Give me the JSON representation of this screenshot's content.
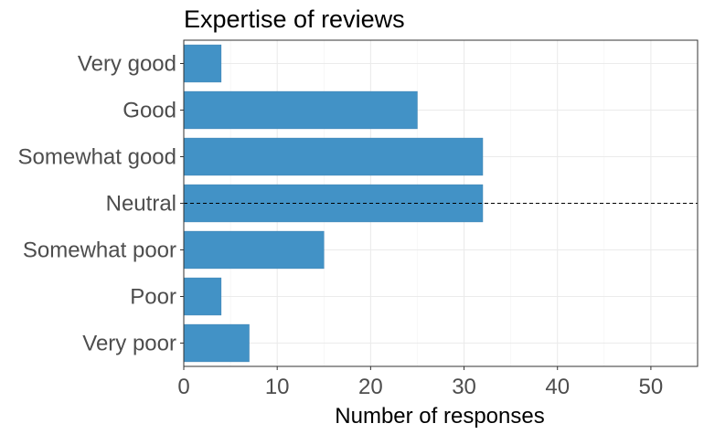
{
  "chart_data": {
    "type": "bar",
    "orientation": "horizontal",
    "title": "Expertise of reviews",
    "xlabel": "Number of responses",
    "ylabel": "",
    "categories": [
      "Very good",
      "Good",
      "Somewhat good",
      "Neutral",
      "Somewhat poor",
      "Poor",
      "Very poor"
    ],
    "values": [
      4,
      25,
      32,
      32,
      15,
      4,
      7
    ],
    "xlim": [
      0,
      55
    ],
    "xticks": [
      0,
      10,
      20,
      30,
      40,
      50
    ],
    "grid": true,
    "reference_line": {
      "category": "Neutral",
      "style": "dashed"
    },
    "colors": {
      "bar": "#4292c6",
      "bar_outline": "#3a7fb0",
      "grid": "#ebebeb",
      "panel_border": "#333333",
      "reference_line": "#000000"
    }
  }
}
